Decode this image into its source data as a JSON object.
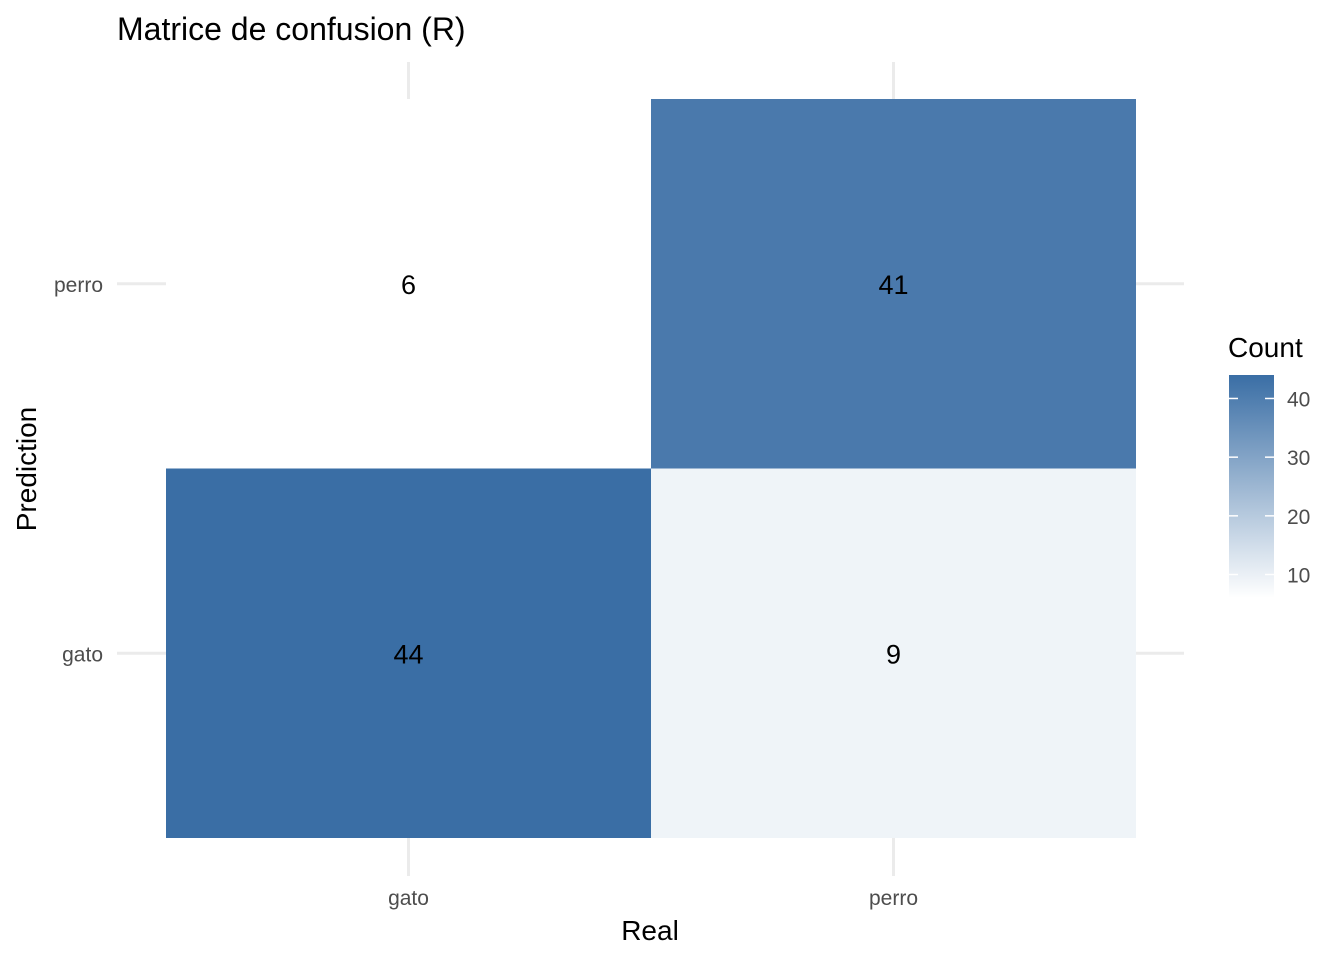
{
  "chart_data": {
    "type": "heatmap",
    "title": "Matrice de confusion (R)",
    "xlabel": "Real",
    "ylabel": "Prediction",
    "x_categories": [
      "gato",
      "perro"
    ],
    "y_categories": [
      "gato",
      "perro"
    ],
    "cells": [
      {
        "real": "gato",
        "prediction": "gato",
        "count": 44
      },
      {
        "real": "perro",
        "prediction": "gato",
        "count": 9
      },
      {
        "real": "gato",
        "prediction": "perro",
        "count": 6
      },
      {
        "real": "perro",
        "prediction": "perro",
        "count": 41
      }
    ],
    "legend": {
      "title": "Count",
      "ticks": [
        10,
        20,
        30,
        40
      ],
      "range": [
        6,
        44
      ],
      "low_color": "#ffffff",
      "high_color": "#3a6ea5",
      "placement": "right"
    },
    "grid": true
  }
}
